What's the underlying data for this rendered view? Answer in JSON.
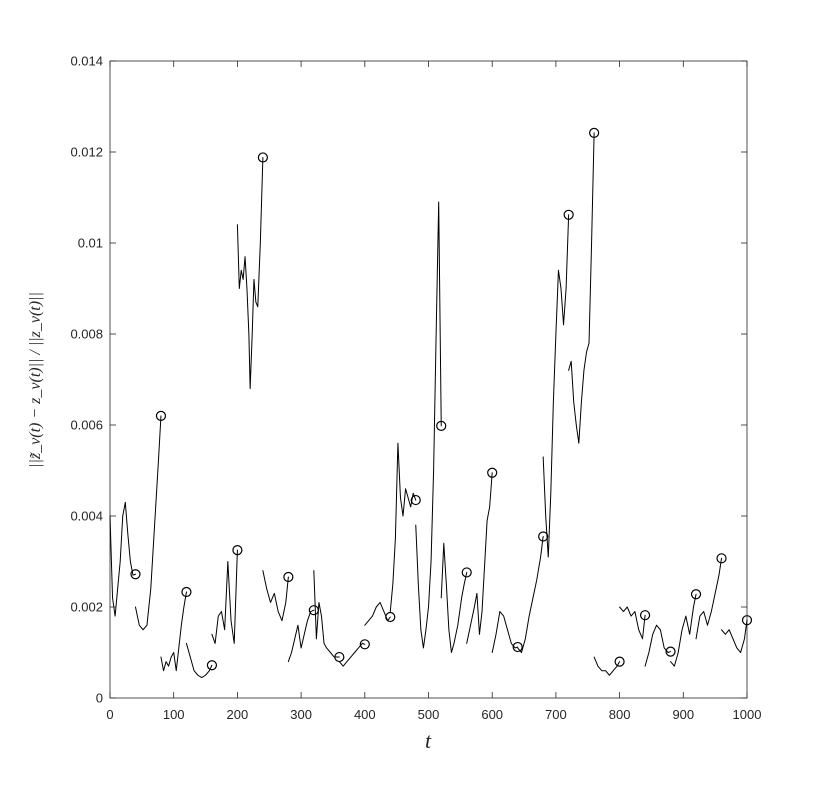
{
  "chart_data": {
    "type": "line",
    "title": "",
    "xlabel": "t",
    "ylabel": "||z̃_v(t) − z_v(t)|| / ||z_v(t)||",
    "xlim": [
      0,
      1000
    ],
    "ylim": [
      0,
      0.014
    ],
    "xticks": [
      0,
      100,
      200,
      300,
      400,
      500,
      600,
      700,
      800,
      900,
      1000
    ],
    "xtick_labels": [
      "0",
      "100",
      "200",
      "300",
      "400",
      "500",
      "600",
      "700",
      "800",
      "900",
      "1000"
    ],
    "yticks": [
      0,
      0.002,
      0.004,
      0.006,
      0.008,
      0.01,
      0.012,
      0.014
    ],
    "ytick_labels": [
      "0",
      "0.002",
      "0.004",
      "0.006",
      "0.008",
      "0.01",
      "0.012",
      "0.014"
    ],
    "grid": false,
    "line_color": "#000000",
    "segments": [
      {
        "x": [
          0,
          4,
          8,
          12,
          16,
          20,
          24,
          28,
          32,
          36,
          40
        ],
        "y": [
          0.004,
          0.0022,
          0.0018,
          0.0024,
          0.003,
          0.004,
          0.0043,
          0.0036,
          0.003,
          0.0027,
          0.00272
        ]
      },
      {
        "x": [
          40,
          46,
          52,
          58,
          64,
          70,
          76,
          80
        ],
        "y": [
          0.002,
          0.0016,
          0.0015,
          0.0016,
          0.0024,
          0.0038,
          0.0052,
          0.0062
        ]
      },
      {
        "x": [
          80,
          84,
          88,
          92,
          96,
          100,
          104,
          108,
          112,
          116,
          120
        ],
        "y": [
          0.0009,
          0.0006,
          0.0008,
          0.0007,
          0.0009,
          0.001,
          0.0006,
          0.0011,
          0.0016,
          0.002,
          0.00233
        ]
      },
      {
        "x": [
          120,
          126,
          132,
          138,
          144,
          150,
          156,
          160
        ],
        "y": [
          0.0012,
          0.0009,
          0.0006,
          0.0005,
          0.00045,
          0.0005,
          0.0006,
          0.00072
        ]
      },
      {
        "x": [
          160,
          165,
          170,
          175,
          180,
          185,
          190,
          195,
          200
        ],
        "y": [
          0.0014,
          0.0012,
          0.0018,
          0.0019,
          0.0015,
          0.003,
          0.0017,
          0.0012,
          0.00325
        ]
      },
      {
        "x": [
          200,
          203,
          206,
          209,
          212,
          215,
          218,
          220,
          223,
          226,
          229,
          232,
          236,
          240
        ],
        "y": [
          0.0104,
          0.009,
          0.0094,
          0.0092,
          0.0097,
          0.009,
          0.008,
          0.0068,
          0.0079,
          0.0092,
          0.0087,
          0.0086,
          0.01,
          0.01188
        ]
      },
      {
        "x": [
          240,
          246,
          252,
          258,
          264,
          270,
          276,
          280
        ],
        "y": [
          0.0028,
          0.0024,
          0.0021,
          0.0023,
          0.0019,
          0.0017,
          0.0021,
          0.00266
        ]
      },
      {
        "x": [
          280,
          285,
          290,
          295,
          300,
          305,
          310,
          315,
          320
        ],
        "y": [
          0.0008,
          0.001,
          0.0013,
          0.0016,
          0.0011,
          0.0014,
          0.0017,
          0.0019,
          0.00193
        ]
      },
      {
        "x": [
          320,
          324,
          328,
          332,
          336,
          340,
          346,
          352,
          360
        ],
        "y": [
          0.0028,
          0.0013,
          0.0021,
          0.0018,
          0.0012,
          0.0011,
          0.001,
          0.0009,
          0.0009
        ]
      },
      {
        "x": [
          360,
          366,
          372,
          378,
          384,
          390,
          396,
          400
        ],
        "y": [
          0.0008,
          0.0007,
          0.0008,
          0.0009,
          0.001,
          0.0011,
          0.0012,
          0.00118
        ]
      },
      {
        "x": [
          400,
          406,
          412,
          418,
          424,
          430,
          436,
          440
        ],
        "y": [
          0.0016,
          0.0017,
          0.0018,
          0.002,
          0.0021,
          0.0019,
          0.0017,
          0.00178
        ]
      },
      {
        "x": [
          440,
          444,
          448,
          452,
          456,
          460,
          464,
          468,
          472,
          476,
          480
        ],
        "y": [
          0.0019,
          0.0025,
          0.0035,
          0.0056,
          0.0044,
          0.004,
          0.0046,
          0.0044,
          0.0042,
          0.0045,
          0.00435
        ]
      },
      {
        "x": [
          480,
          484,
          488,
          492,
          496,
          500,
          504,
          508,
          512,
          516,
          520
        ],
        "y": [
          0.0038,
          0.0025,
          0.0015,
          0.0011,
          0.0015,
          0.002,
          0.003,
          0.005,
          0.008,
          0.0109,
          0.00598
        ]
      },
      {
        "x": [
          520,
          524,
          528,
          532,
          536,
          540,
          546,
          552,
          556,
          560
        ],
        "y": [
          0.0022,
          0.0034,
          0.0025,
          0.0015,
          0.001,
          0.0012,
          0.0016,
          0.0022,
          0.0025,
          0.00276
        ]
      },
      {
        "x": [
          560,
          566,
          572,
          576,
          580,
          584,
          588,
          592,
          596,
          600
        ],
        "y": [
          0.0012,
          0.0016,
          0.002,
          0.0023,
          0.0014,
          0.0019,
          0.0029,
          0.0039,
          0.0042,
          0.00495
        ]
      },
      {
        "x": [
          600,
          606,
          612,
          618,
          624,
          630,
          636,
          640
        ],
        "y": [
          0.001,
          0.0014,
          0.0019,
          0.0018,
          0.0015,
          0.0012,
          0.0011,
          0.00112
        ]
      },
      {
        "x": [
          640,
          646,
          652,
          658,
          664,
          670,
          676,
          680
        ],
        "y": [
          0.0011,
          0.001,
          0.0013,
          0.0018,
          0.0022,
          0.0026,
          0.0031,
          0.00355
        ]
      },
      {
        "x": [
          680,
          684,
          688,
          692,
          696,
          700,
          704,
          708,
          712,
          716,
          720
        ],
        "y": [
          0.0053,
          0.004,
          0.0031,
          0.0045,
          0.0065,
          0.008,
          0.0094,
          0.009,
          0.0082,
          0.009,
          0.01062
        ]
      },
      {
        "x": [
          720,
          724,
          728,
          732,
          736,
          740,
          744,
          748,
          752,
          756,
          760
        ],
        "y": [
          0.0072,
          0.0074,
          0.0065,
          0.006,
          0.0056,
          0.0065,
          0.0072,
          0.0076,
          0.0078,
          0.01,
          0.01242
        ]
      },
      {
        "x": [
          760,
          766,
          772,
          778,
          784,
          790,
          796,
          800
        ],
        "y": [
          0.0009,
          0.0007,
          0.0006,
          0.0006,
          0.0005,
          0.0006,
          0.0007,
          0.0008
        ]
      },
      {
        "x": [
          800,
          806,
          812,
          818,
          824,
          830,
          836,
          840
        ],
        "y": [
          0.002,
          0.0019,
          0.002,
          0.0018,
          0.0019,
          0.0015,
          0.0013,
          0.00182
        ]
      },
      {
        "x": [
          840,
          846,
          852,
          858,
          864,
          870,
          876,
          880
        ],
        "y": [
          0.0007,
          0.001,
          0.0014,
          0.0016,
          0.0015,
          0.0011,
          0.001,
          0.00102
        ]
      },
      {
        "x": [
          880,
          886,
          892,
          898,
          904,
          910,
          916,
          920
        ],
        "y": [
          0.0008,
          0.0007,
          0.001,
          0.0015,
          0.0018,
          0.0014,
          0.002,
          0.00228
        ]
      },
      {
        "x": [
          920,
          926,
          932,
          938,
          944,
          950,
          956,
          960
        ],
        "y": [
          0.0013,
          0.0018,
          0.0019,
          0.0016,
          0.0019,
          0.0023,
          0.0027,
          0.00307
        ]
      },
      {
        "x": [
          960,
          966,
          972,
          978,
          984,
          990,
          996,
          1000
        ],
        "y": [
          0.0015,
          0.0014,
          0.0015,
          0.0013,
          0.0011,
          0.001,
          0.0013,
          0.00171
        ]
      }
    ],
    "markers": {
      "symbol": "circle",
      "x": [
        40,
        120,
        160,
        200,
        240,
        280,
        320,
        360,
        400,
        440,
        480,
        520,
        560,
        600,
        640,
        680,
        720,
        760,
        800,
        840,
        880,
        920,
        960,
        1000
      ],
      "y": [
        0.00272,
        0.00233,
        0.00072,
        0.00325,
        0.01188,
        0.00266,
        0.00193,
        0.0009,
        0.00118,
        0.00178,
        0.00435,
        0.00598,
        0.00276,
        0.00495,
        0.00112,
        0.00355,
        0.01062,
        0.01242,
        0.0008,
        0.00182,
        0.00102,
        0.00228,
        0.00307,
        0.00171
      ],
      "also_at": {
        "x": [
          80
        ],
        "y": [
          0.0062
        ]
      }
    }
  }
}
